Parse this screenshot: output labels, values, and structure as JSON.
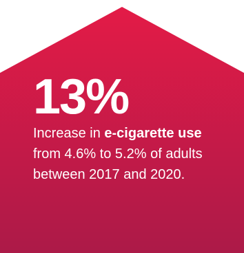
{
  "colors": {
    "top": "#e31b47",
    "bottom": "#ac1a48",
    "text": "#ffffff"
  },
  "stat": {
    "value": "13%"
  },
  "description": {
    "part1": "Increase in ",
    "bold": "e-cigarette use",
    "part2": " from 4.6% to 5.2% of adults between 2017 and 2020."
  }
}
